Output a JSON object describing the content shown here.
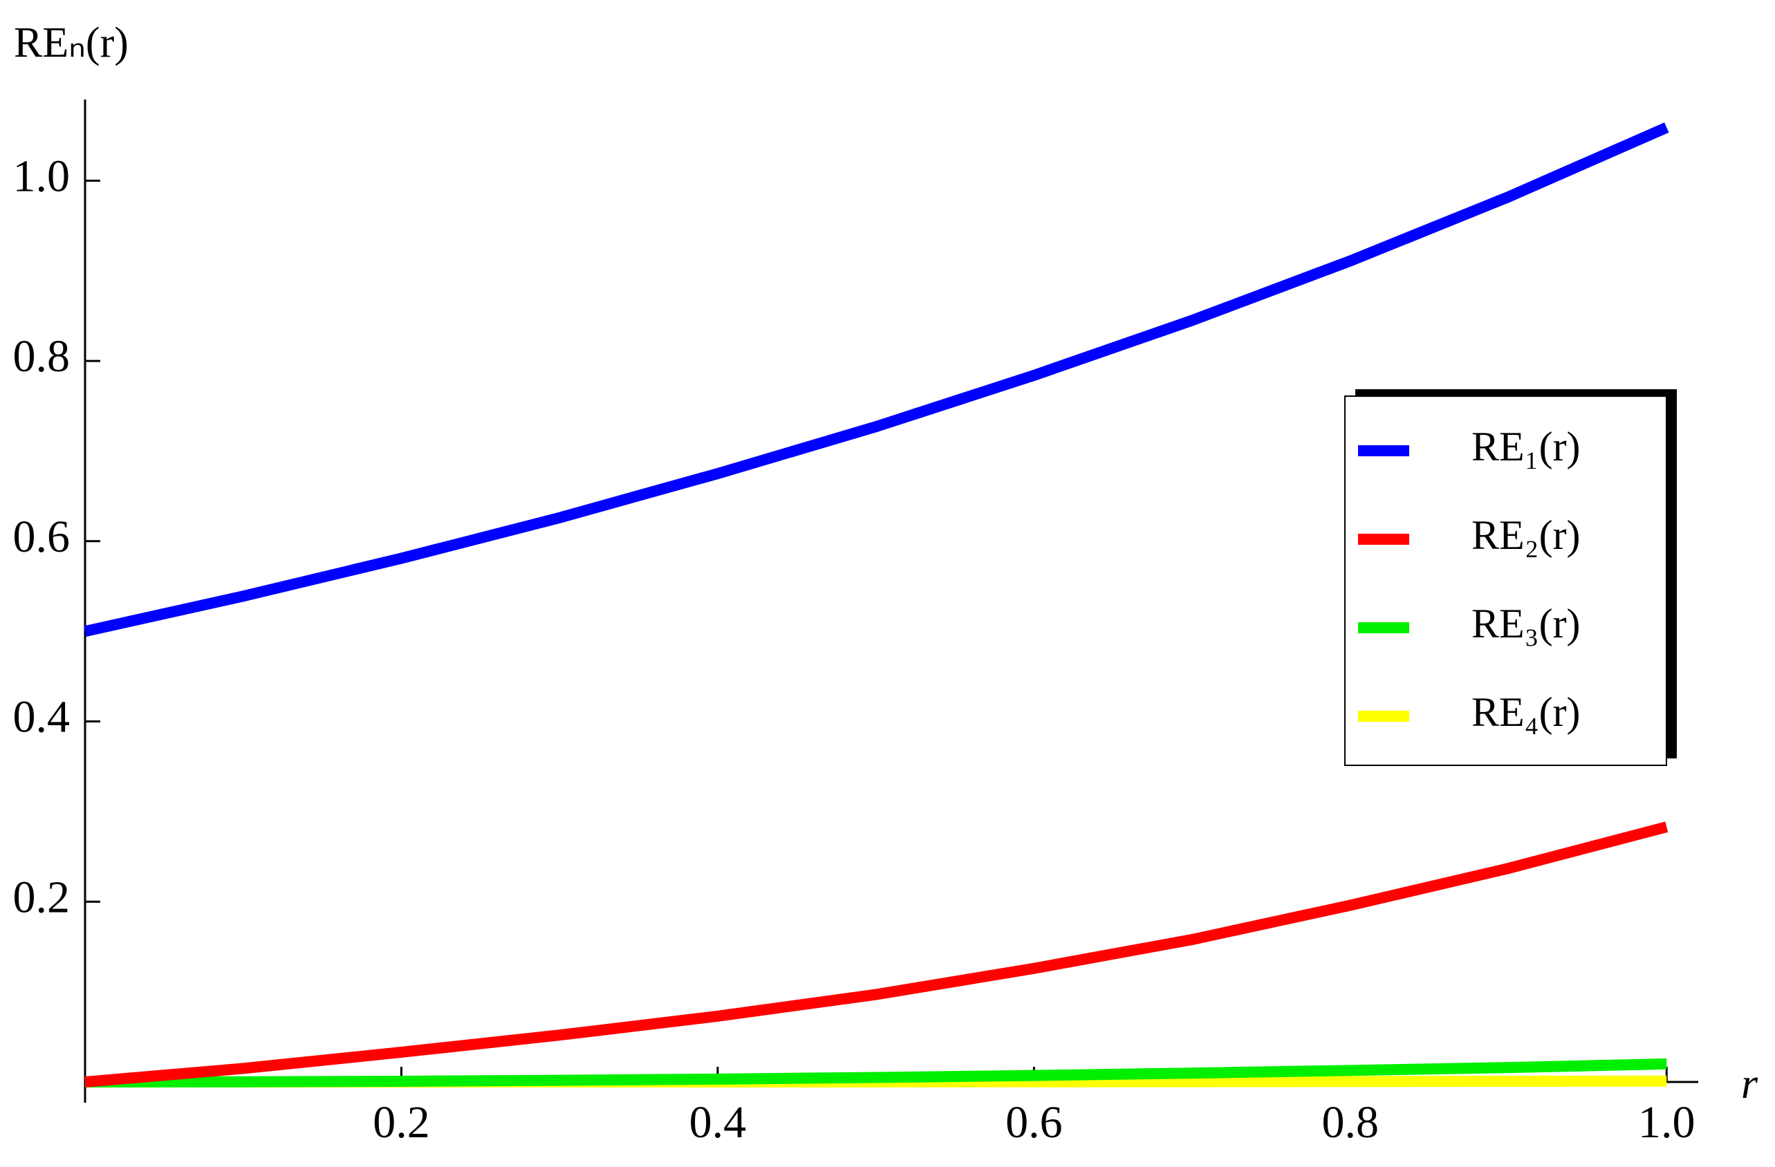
{
  "chart_data": {
    "type": "line",
    "y_label": "REₙ(r)",
    "x_label": "r",
    "x": [
      0,
      0.1,
      0.2,
      0.3,
      0.4,
      0.5,
      0.6,
      0.7,
      0.8,
      0.9,
      1.0
    ],
    "series": [
      {
        "name": "RE₁(r)",
        "color": "#0000ff",
        "values": [
          0.5,
          0.539,
          0.581,
          0.626,
          0.675,
          0.727,
          0.784,
          0.845,
          0.911,
          0.982,
          1.059
        ]
      },
      {
        "name": "RE₂(r)",
        "color": "#ff0000",
        "values": [
          0,
          0.015,
          0.033,
          0.052,
          0.073,
          0.097,
          0.126,
          0.158,
          0.196,
          0.237,
          0.283
        ]
      },
      {
        "name": "RE₃(r)",
        "color": "#00ee00",
        "values": [
          0,
          0.0002,
          0.0008,
          0.0018,
          0.0032,
          0.005,
          0.0072,
          0.0098,
          0.0128,
          0.016,
          0.02
        ]
      },
      {
        "name": "RE₄(r)",
        "color": "#ffff00",
        "values": [
          0,
          0,
          0,
          0,
          0,
          0.0001,
          0.0002,
          0.0003,
          0.0005,
          0.0008,
          0.001
        ]
      }
    ],
    "xlim": [
      0,
      1.02
    ],
    "xticks": [
      0.2,
      0.4,
      0.6,
      0.8,
      {
        "value": 1,
        "label": "1.0"
      }
    ],
    "ylim": [
      0,
      1.09
    ],
    "yticks": [
      0.2,
      0.4,
      0.6,
      0.8,
      {
        "value": 1,
        "label": "1.0"
      }
    ],
    "grid": false,
    "legend": "right"
  }
}
